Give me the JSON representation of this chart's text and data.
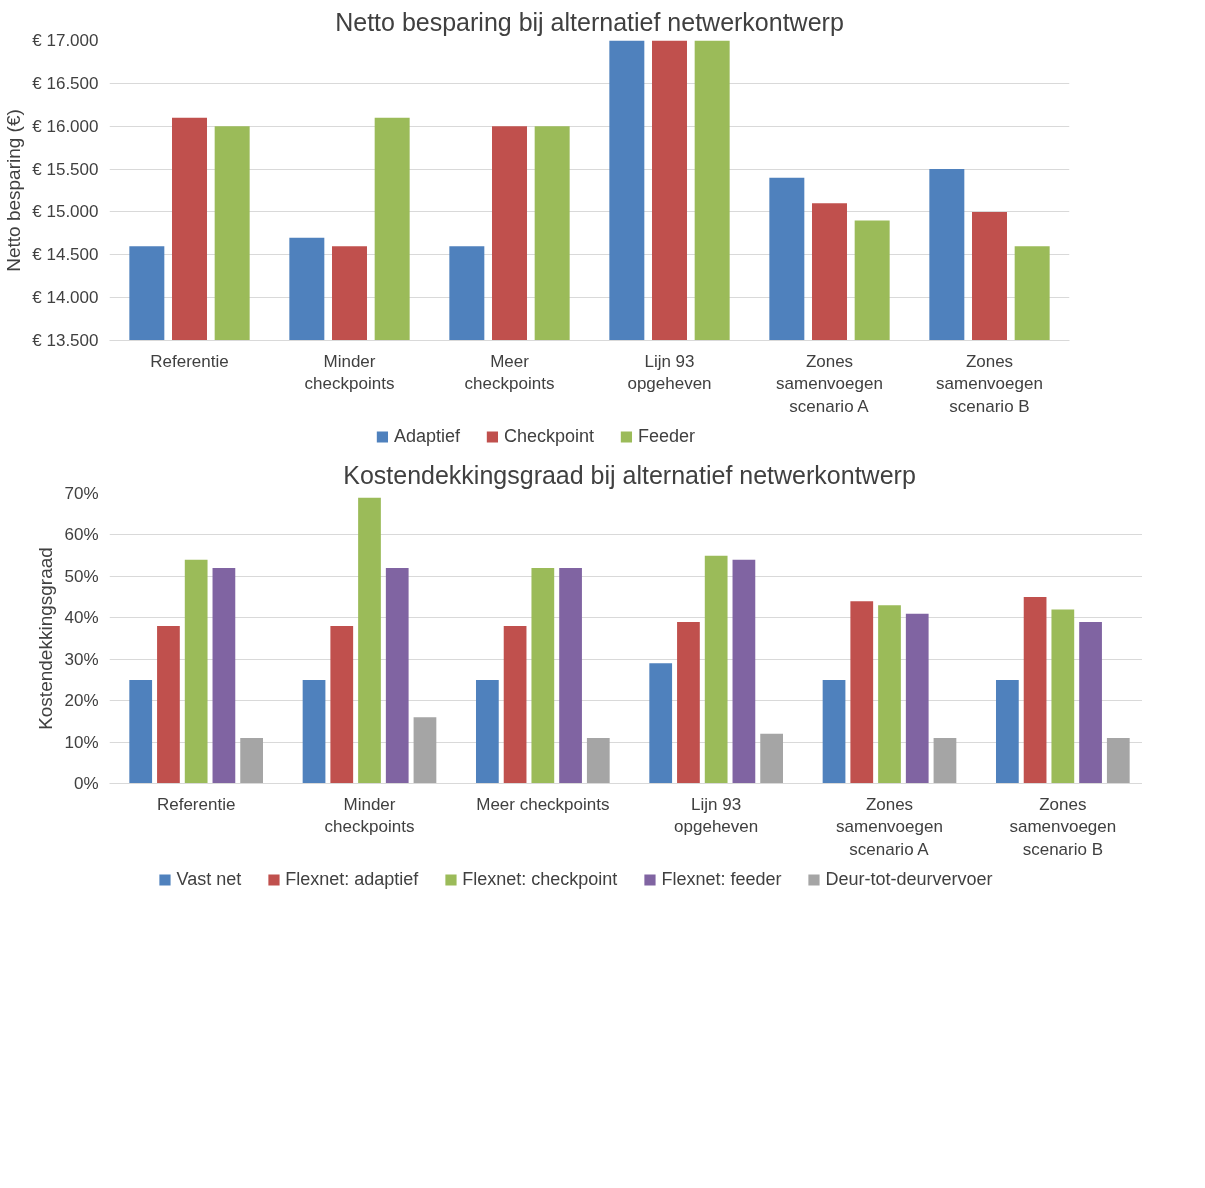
{
  "chart_data": [
    {
      "type": "bar",
      "title": "Netto besparing bij alternatief netwerkontwerp",
      "ylabel": "Netto besparing (€)",
      "categories": [
        "Referentie",
        "Minder checkpoints",
        "Meer checkpoints",
        "Lijn 93 opgeheven",
        "Zones samenvoegen scenario A",
        "Zones samenvoegen scenario B"
      ],
      "series": [
        {
          "name": "Adaptief",
          "color": "#4f81bd",
          "values": [
            14600,
            14700,
            14600,
            17000,
            15400,
            15500
          ]
        },
        {
          "name": "Checkpoint",
          "color": "#c0504d",
          "values": [
            16100,
            14600,
            16000,
            17000,
            15100,
            15000
          ]
        },
        {
          "name": "Feeder",
          "color": "#9bbb59",
          "values": [
            16000,
            16100,
            16000,
            17000,
            14900,
            14600
          ]
        }
      ],
      "ylim": [
        13500,
        17000
      ],
      "yticks": [
        {
          "value": 13500,
          "label": "€ 13.500"
        },
        {
          "value": 14000,
          "label": "€ 14.000"
        },
        {
          "value": 14500,
          "label": "€ 14.500"
        },
        {
          "value": 15000,
          "label": "€ 15.000"
        },
        {
          "value": 15500,
          "label": "€ 15.500"
        },
        {
          "value": 16000,
          "label": "€ 16.000"
        },
        {
          "value": 16500,
          "label": "€ 16.500"
        },
        {
          "value": 17000,
          "label": "€ 17.000"
        }
      ],
      "grid": "y",
      "legend": "bottom"
    },
    {
      "type": "bar",
      "title": "Kostendekkingsgraad bij alternatief netwerkontwerp",
      "ylabel": "Kostendekkingsgraad",
      "categories": [
        "Referentie",
        "Minder checkpoints",
        "Meer checkpoints",
        "Lijn 93 opgeheven",
        "Zones samenvoegen scenario A",
        "Zones samenvoegen scenario B"
      ],
      "series": [
        {
          "name": "Vast net",
          "color": "#4f81bd",
          "values": [
            25,
            25,
            25,
            29,
            25,
            25
          ]
        },
        {
          "name": "Flexnet: adaptief",
          "color": "#c0504d",
          "values": [
            38,
            38,
            38,
            39,
            44,
            45
          ]
        },
        {
          "name": "Flexnet: checkpoint",
          "color": "#9bbb59",
          "values": [
            54,
            69,
            52,
            55,
            43,
            42
          ]
        },
        {
          "name": "Flexnet: feeder",
          "color": "#8064a2",
          "values": [
            52,
            52,
            52,
            54,
            41,
            39
          ]
        },
        {
          "name": "Deur-tot-deurvervoer",
          "color": "#a5a5a5",
          "values": [
            11,
            16,
            11,
            12,
            11,
            11
          ]
        }
      ],
      "ylim": [
        0,
        70
      ],
      "yticks": [
        {
          "value": 0,
          "label": "0%"
        },
        {
          "value": 10,
          "label": "10%"
        },
        {
          "value": 20,
          "label": "20%"
        },
        {
          "value": 30,
          "label": "30%"
        },
        {
          "value": 40,
          "label": "40%"
        },
        {
          "value": 50,
          "label": "50%"
        },
        {
          "value": 60,
          "label": "60%"
        },
        {
          "value": 70,
          "label": "70%"
        }
      ],
      "grid": "y",
      "legend": "bottom"
    }
  ]
}
